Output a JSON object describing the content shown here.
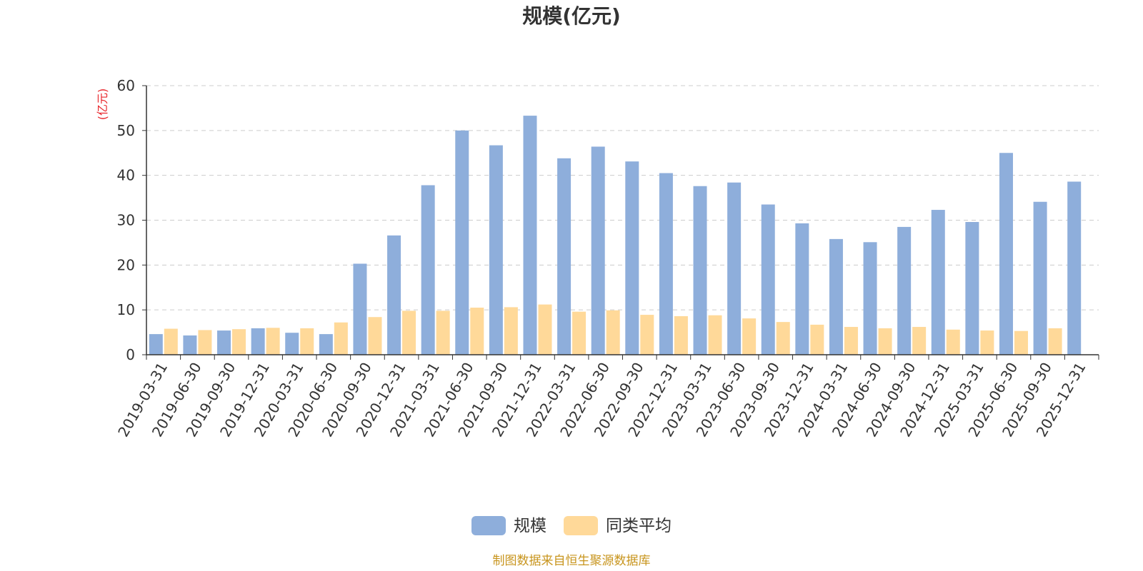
{
  "chart_data": {
    "type": "bar",
    "title": "规模(亿元)",
    "ylabel": "(亿元)",
    "xlabel": "",
    "ylim": [
      0,
      60
    ],
    "yticks": [
      0,
      10,
      20,
      30,
      40,
      50,
      60
    ],
    "grid": true,
    "legend": "bottom",
    "categories": [
      "2019-03-31",
      "2019-06-30",
      "2019-09-30",
      "2019-12-31",
      "2020-03-31",
      "2020-06-30",
      "2020-09-30",
      "2020-12-31",
      "2021-03-31",
      "2021-06-30",
      "2021-09-30",
      "2021-12-31",
      "2022-03-31",
      "2022-06-30",
      "2022-09-30",
      "2022-12-31",
      "2023-03-31",
      "2023-06-30",
      "2023-09-30",
      "2023-12-31",
      "2024-03-31",
      "2024-06-30",
      "2024-09-30",
      "2024-12-31",
      "2025-03-31",
      "2025-06-30",
      "2025-09-30",
      "2025-12-31"
    ],
    "series": [
      {
        "name": "规模",
        "color": "#8eaedb",
        "values": [
          4.6,
          4.3,
          5.4,
          5.9,
          4.9,
          4.6,
          20.3,
          26.6,
          37.8,
          50.0,
          46.7,
          53.3,
          43.8,
          46.4,
          43.1,
          40.5,
          37.6,
          38.4,
          33.5,
          29.3,
          25.8,
          25.1,
          28.5,
          32.3,
          29.6,
          45.0,
          34.1,
          38.6
        ]
      },
      {
        "name": "同类平均",
        "color": "#ffd999",
        "values": [
          5.8,
          5.5,
          5.7,
          6.0,
          5.9,
          7.2,
          8.4,
          9.8,
          9.8,
          10.5,
          10.6,
          11.2,
          9.6,
          9.9,
          8.9,
          8.6,
          8.8,
          8.1,
          7.3,
          6.7,
          6.2,
          5.9,
          6.2,
          5.6,
          5.4,
          5.3,
          5.9,
          null
        ]
      }
    ]
  },
  "source_text": "制图数据来自恒生聚源数据库",
  "colors": {
    "title": "#333333",
    "axis": "#333333",
    "grid": "#cccccc",
    "unit": "#e8262b",
    "source": "#c8951e"
  }
}
